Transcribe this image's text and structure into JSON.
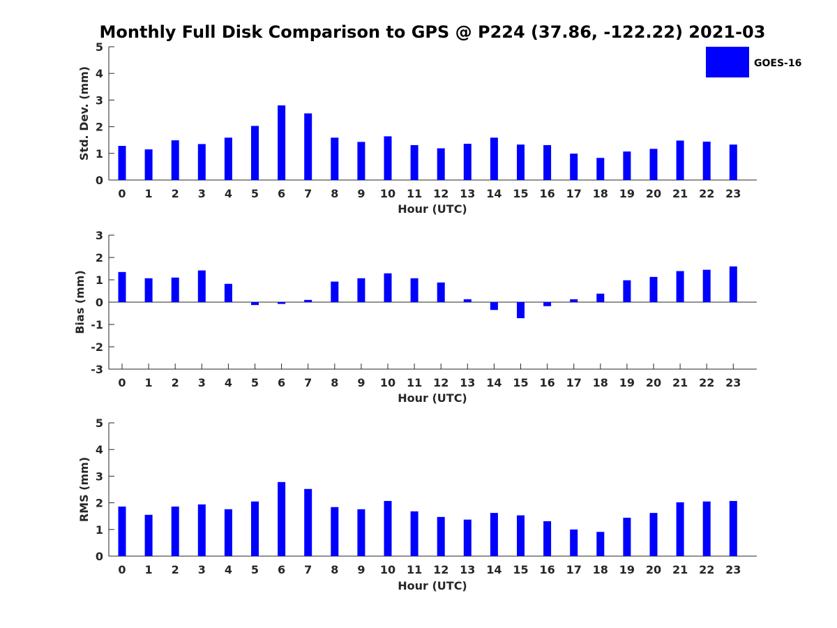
{
  "title": "Monthly Full Disk Comparison to GPS @ P224 (37.86, -122.22) 2021-03",
  "legend": {
    "label": "GOES-16",
    "color": "#0000FF",
    "placement": "top-right"
  },
  "chart_data": [
    {
      "type": "bar",
      "title": "",
      "xlabel": "Hour (UTC)",
      "ylabel": "Std. Dev. (mm)",
      "ylim": [
        0,
        5
      ],
      "yticks": [
        0,
        1,
        2,
        3,
        4,
        5
      ],
      "grid": false,
      "categories": [
        "0",
        "1",
        "2",
        "3",
        "4",
        "5",
        "6",
        "7",
        "8",
        "9",
        "10",
        "11",
        "12",
        "13",
        "14",
        "15",
        "16",
        "17",
        "18",
        "19",
        "20",
        "21",
        "22",
        "23"
      ],
      "series": [
        {
          "name": "GOES-16",
          "color": "#0000FF",
          "values": [
            1.28,
            1.15,
            1.49,
            1.35,
            1.59,
            2.03,
            2.8,
            2.5,
            1.59,
            1.43,
            1.64,
            1.31,
            1.19,
            1.36,
            1.59,
            1.33,
            1.31,
            0.99,
            0.83,
            1.07,
            1.17,
            1.48,
            1.44,
            1.33
          ]
        }
      ]
    },
    {
      "type": "bar",
      "title": "",
      "xlabel": "Hour (UTC)",
      "ylabel": "Bias (mm)",
      "ylim": [
        -3,
        3
      ],
      "yticks": [
        -3,
        -2,
        -1,
        0,
        1,
        2,
        3
      ],
      "grid": false,
      "categories": [
        "0",
        "1",
        "2",
        "3",
        "4",
        "5",
        "6",
        "7",
        "8",
        "9",
        "10",
        "11",
        "12",
        "13",
        "14",
        "15",
        "16",
        "17",
        "18",
        "19",
        "20",
        "21",
        "22",
        "23"
      ],
      "series": [
        {
          "name": "GOES-16",
          "color": "#0000FF",
          "values": [
            1.35,
            1.07,
            1.1,
            1.42,
            0.82,
            -0.13,
            -0.08,
            0.1,
            0.92,
            1.07,
            1.29,
            1.07,
            0.88,
            0.13,
            -0.35,
            -0.72,
            -0.18,
            0.13,
            0.38,
            0.98,
            1.13,
            1.39,
            1.45,
            1.6
          ]
        }
      ]
    },
    {
      "type": "bar",
      "title": "",
      "xlabel": "Hour (UTC)",
      "ylabel": "RMS (mm)",
      "ylim": [
        0,
        5
      ],
      "yticks": [
        0,
        1,
        2,
        3,
        4,
        5
      ],
      "grid": false,
      "categories": [
        "0",
        "1",
        "2",
        "3",
        "4",
        "5",
        "6",
        "7",
        "8",
        "9",
        "10",
        "11",
        "12",
        "13",
        "14",
        "15",
        "16",
        "17",
        "18",
        "19",
        "20",
        "21",
        "22",
        "23"
      ],
      "series": [
        {
          "name": "GOES-16",
          "color": "#0000FF",
          "values": [
            1.86,
            1.55,
            1.86,
            1.94,
            1.76,
            2.05,
            2.78,
            2.52,
            1.84,
            1.76,
            2.07,
            1.68,
            1.47,
            1.37,
            1.62,
            1.53,
            1.31,
            1.0,
            0.91,
            1.44,
            1.62,
            2.02,
            2.05,
            2.07
          ]
        }
      ]
    }
  ]
}
